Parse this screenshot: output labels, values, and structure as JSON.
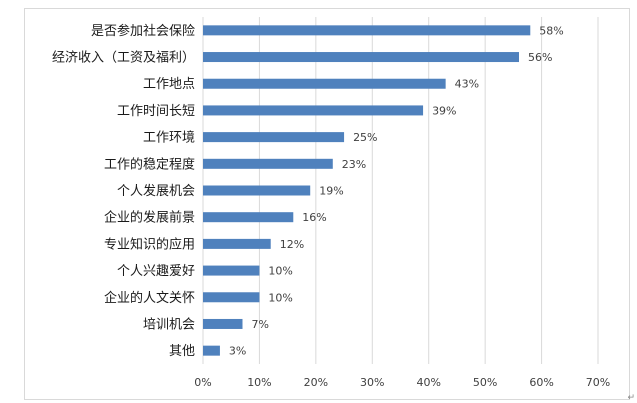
{
  "chart_data": {
    "type": "bar",
    "orientation": "horizontal",
    "categories": [
      "是否参加社会保险",
      "经济收入（工资及福利）",
      "工作地点",
      "工作时间长短",
      "工作环境",
      "工作的稳定程度",
      "个人发展机会",
      "企业的发展前景",
      "专业知识的应用",
      "个人兴趣爱好",
      "企业的人文关怀",
      "培训机会",
      "其他"
    ],
    "values": [
      58,
      56,
      43,
      39,
      25,
      23,
      19,
      16,
      12,
      10,
      10,
      7,
      3
    ],
    "value_labels": [
      "58%",
      "56%",
      "43%",
      "39%",
      "25%",
      "23%",
      "19%",
      "16%",
      "12%",
      "10%",
      "10%",
      "7%",
      "3%"
    ],
    "x_ticks": [
      "0%",
      "10%",
      "20%",
      "30%",
      "40%",
      "50%",
      "60%",
      "70%"
    ],
    "xlim": [
      0,
      70
    ],
    "grid": true,
    "bar_color": "#4f81bd",
    "grid_color": "#d9d9d9",
    "title": "",
    "xlabel": "",
    "ylabel": ""
  }
}
